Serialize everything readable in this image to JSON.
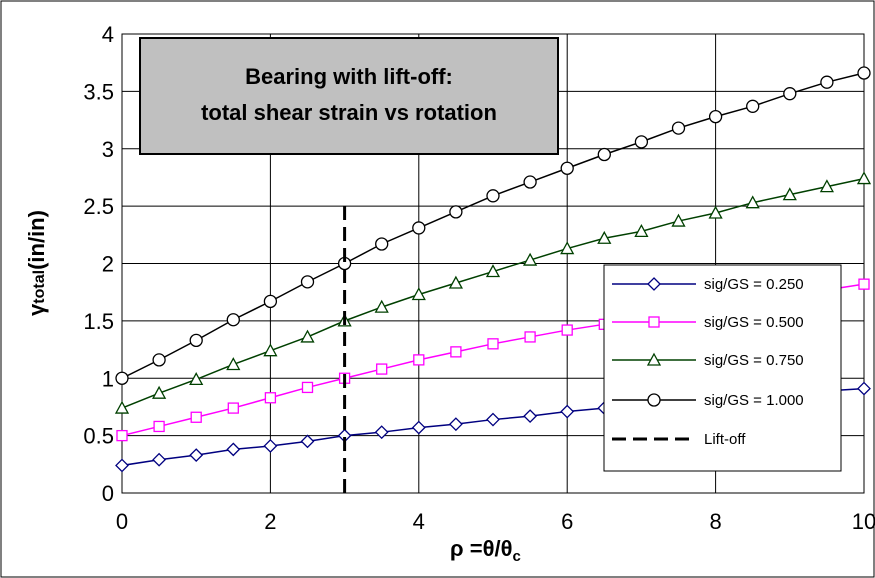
{
  "chart_data": {
    "type": "line",
    "title": [
      "Bearing with lift-off:",
      "total shear strain vs rotation"
    ],
    "xlabel": {
      "main": "ρ =θ/θ",
      "sub": "c"
    },
    "ylabel": {
      "sub": "γ",
      "subscript": "total",
      "main": "(in/in)"
    },
    "xlim": [
      0,
      10
    ],
    "ylim": [
      0,
      4
    ],
    "x_ticks": [
      0,
      2,
      4,
      6,
      8,
      10
    ],
    "x_tick_labels": [
      "0",
      "2",
      "4",
      "6",
      "8",
      "10"
    ],
    "y_ticks": [
      0,
      0.5,
      1,
      1.5,
      2,
      2.5,
      3,
      3.5,
      4
    ],
    "y_tick_labels": [
      "0",
      "0.5",
      "1",
      "1.5",
      "2",
      "2.5",
      "3",
      "3.5",
      "4"
    ],
    "x": [
      0,
      0.5,
      1,
      1.5,
      2,
      2.5,
      3,
      3.5,
      4,
      4.5,
      5,
      5.5,
      6,
      6.5,
      7,
      7.5,
      8,
      8.5,
      9,
      9.5,
      10
    ],
    "grid": true,
    "legend_position": "right",
    "series": [
      {
        "name": "sig/GS = 0.250",
        "color": "#000080",
        "marker": "diamond",
        "values": [
          0.24,
          0.29,
          0.33,
          0.38,
          0.41,
          0.45,
          0.5,
          0.53,
          0.57,
          0.6,
          0.64,
          0.67,
          0.71,
          0.74,
          0.77,
          0.8,
          0.83,
          0.85,
          0.87,
          0.89,
          0.91
        ]
      },
      {
        "name": "sig/GS = 0.500",
        "color": "#ff00ff",
        "marker": "square",
        "values": [
          0.5,
          0.58,
          0.66,
          0.74,
          0.83,
          0.92,
          1.0,
          1.08,
          1.16,
          1.23,
          1.3,
          1.36,
          1.42,
          1.47,
          1.52,
          1.57,
          1.62,
          1.67,
          1.72,
          1.77,
          1.82
        ]
      },
      {
        "name": "sig/GS = 0.750",
        "color": "#004000",
        "marker": "triangle",
        "values": [
          0.74,
          0.87,
          0.99,
          1.12,
          1.24,
          1.36,
          1.5,
          1.62,
          1.73,
          1.83,
          1.93,
          2.03,
          2.13,
          2.22,
          2.28,
          2.37,
          2.44,
          2.53,
          2.6,
          2.67,
          2.74
        ]
      },
      {
        "name": "sig/GS = 1.000",
        "color": "#000000",
        "marker": "circle",
        "values": [
          1.0,
          1.16,
          1.33,
          1.51,
          1.67,
          1.84,
          2.0,
          2.17,
          2.31,
          2.45,
          2.59,
          2.71,
          2.83,
          2.95,
          3.06,
          3.18,
          3.28,
          3.37,
          3.48,
          3.58,
          3.66
        ]
      }
    ],
    "liftoff": {
      "name": "Lift-off",
      "x": 3,
      "y": [
        0,
        2.5
      ],
      "color": "#000000"
    }
  }
}
